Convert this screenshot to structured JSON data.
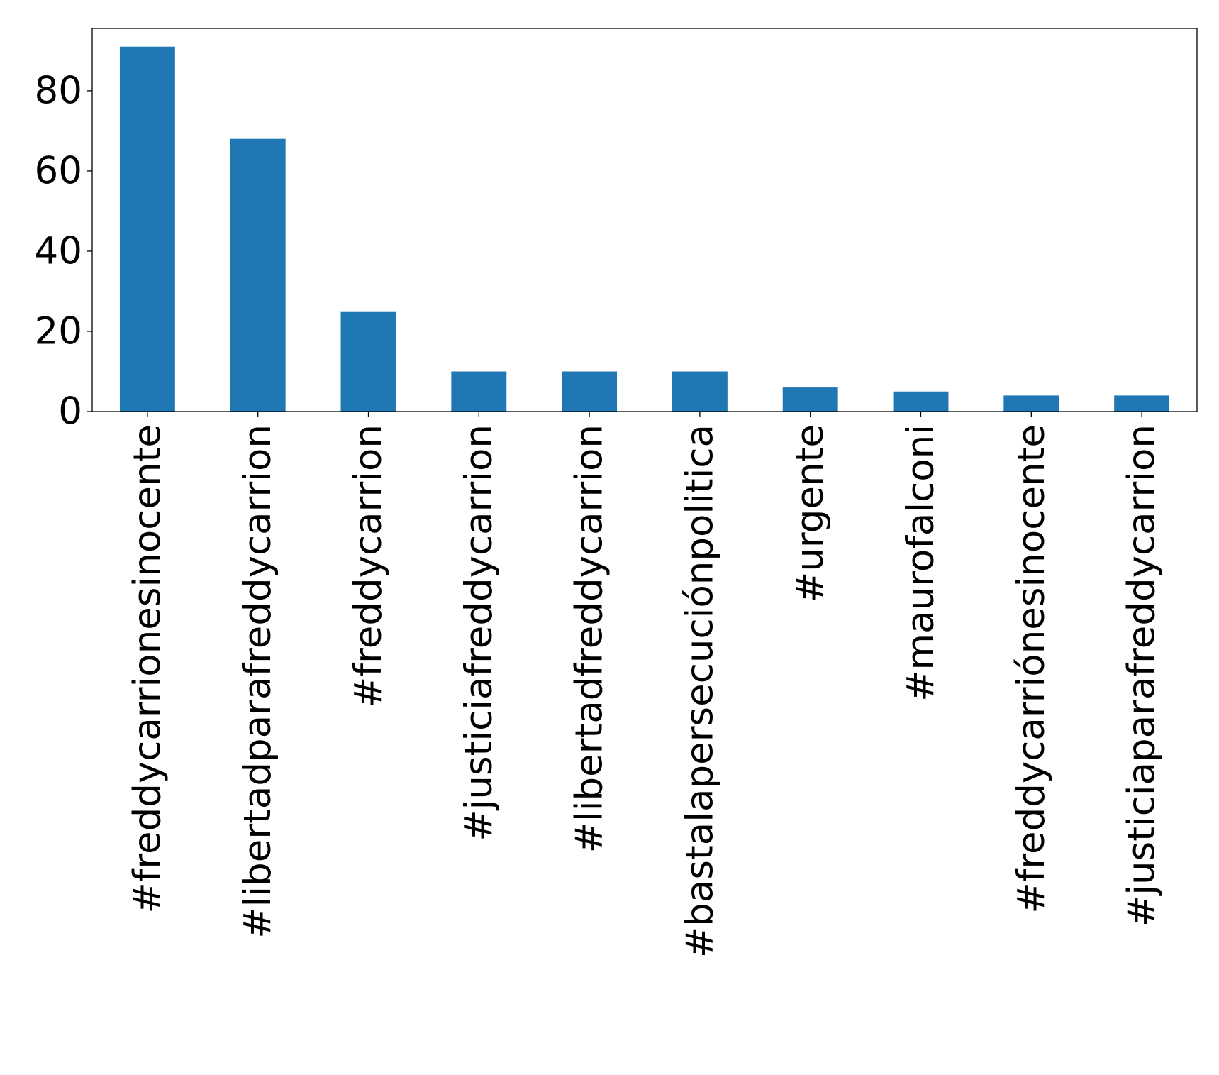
{
  "chart_data": {
    "type": "bar",
    "title": "",
    "xlabel": "",
    "ylabel": "",
    "categories": [
      "#freddycarrionesinocente",
      "#libertadparafreddycarrion",
      "#freddycarrion",
      "#justiciafreddycarrion",
      "#libertadfreddycarrion",
      "#bastalapersecuciónpolitica",
      "#urgente",
      "#maurofalconi",
      "#freddycarriónesinocente",
      "#justiciaparafreddycarrion"
    ],
    "values": [
      91,
      68,
      25,
      10,
      10,
      10,
      6,
      5,
      4,
      4
    ],
    "ylim": [
      0,
      95.55
    ],
    "yticks": [
      0,
      20,
      40,
      60,
      80
    ],
    "ytick_labels": [
      "0",
      "20",
      "40",
      "60",
      "80"
    ],
    "grid": false,
    "bar_color": "#1f77b4"
  }
}
